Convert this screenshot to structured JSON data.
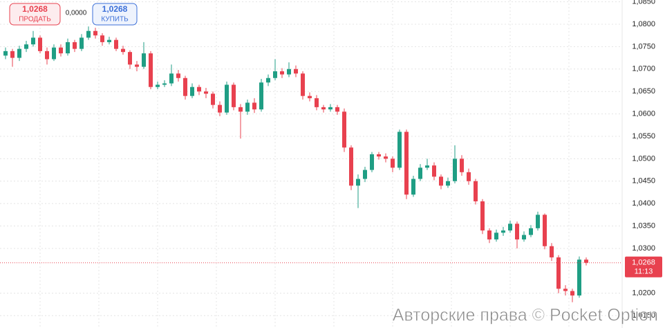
{
  "chart_data": {
    "type": "candlestick",
    "up_color": "#1f9e84",
    "down_color": "#e8414f",
    "grid": true,
    "ylim": [
      1.01225,
      1.0854
    ],
    "yticks": [
      {
        "value": 1.085,
        "label": "1,0850"
      },
      {
        "value": 1.08,
        "label": "1,0800"
      },
      {
        "value": 1.075,
        "label": "1,0750"
      },
      {
        "value": 1.07,
        "label": "1,0700"
      },
      {
        "value": 1.065,
        "label": "1,0650"
      },
      {
        "value": 1.06,
        "label": "1,0600"
      },
      {
        "value": 1.055,
        "label": "1,0550"
      },
      {
        "value": 1.05,
        "label": "1,0500"
      },
      {
        "value": 1.045,
        "label": "1,0450"
      },
      {
        "value": 1.04,
        "label": "1,0400"
      },
      {
        "value": 1.035,
        "label": "1,0350"
      },
      {
        "value": 1.03,
        "label": "1,0300"
      },
      {
        "value": 1.02,
        "label": "1,0200"
      },
      {
        "value": 1.015,
        "label": "1,0150"
      }
    ],
    "last_price": {
      "value": 1.0268,
      "label": "1,0268"
    },
    "timer": "11:13",
    "candles": [
      [
        1.073,
        1.0748,
        1.0722,
        1.074
      ],
      [
        1.074,
        1.0745,
        1.0705,
        1.0725
      ],
      [
        1.0725,
        1.0752,
        1.0718,
        1.0745
      ],
      [
        1.0745,
        1.0763,
        1.0738,
        1.0755
      ],
      [
        1.0755,
        1.0785,
        1.075,
        1.077
      ],
      [
        1.077,
        1.0775,
        1.0735,
        1.074
      ],
      [
        1.074,
        1.0748,
        1.071,
        1.0722
      ],
      [
        1.0722,
        1.0755,
        1.0718,
        1.0748
      ],
      [
        1.0748,
        1.0755,
        1.0728,
        1.0735
      ],
      [
        1.0735,
        1.0768,
        1.073,
        1.076
      ],
      [
        1.076,
        1.0765,
        1.0738,
        1.0745
      ],
      [
        1.0745,
        1.0778,
        1.074,
        1.077
      ],
      [
        1.077,
        1.0795,
        1.0765,
        1.0785
      ],
      [
        1.0785,
        1.0792,
        1.0768,
        1.0775
      ],
      [
        1.0775,
        1.078,
        1.0752,
        1.076
      ],
      [
        1.076,
        1.0772,
        1.0755,
        1.0765
      ],
      [
        1.0765,
        1.077,
        1.074,
        1.0745
      ],
      [
        1.0745,
        1.0752,
        1.0732,
        1.0738
      ],
      [
        1.0738,
        1.0742,
        1.07,
        1.071
      ],
      [
        1.071,
        1.0718,
        1.0695,
        1.0705
      ],
      [
        1.0705,
        1.076,
        1.07,
        1.0735
      ],
      [
        1.0735,
        1.074,
        1.0655,
        1.066
      ],
      [
        1.066,
        1.0672,
        1.0655,
        1.0665
      ],
      [
        1.0665,
        1.0675,
        1.066,
        1.0668
      ],
      [
        1.0668,
        1.071,
        1.0662,
        1.069
      ],
      [
        1.069,
        1.0698,
        1.0672,
        1.068
      ],
      [
        1.068,
        1.0685,
        1.0632,
        1.064
      ],
      [
        1.064,
        1.0668,
        1.0635,
        1.066
      ],
      [
        1.066,
        1.0665,
        1.0642,
        1.065
      ],
      [
        1.065,
        1.0658,
        1.0635,
        1.0645
      ],
      [
        1.0645,
        1.065,
        1.0612,
        1.062
      ],
      [
        1.062,
        1.0628,
        1.0595,
        1.0603
      ],
      [
        1.0603,
        1.0672,
        1.0598,
        1.0665
      ],
      [
        1.0665,
        1.067,
        1.0608,
        1.0615
      ],
      [
        1.0615,
        1.0622,
        1.0545,
        1.0605
      ],
      [
        1.0605,
        1.0632,
        1.0598,
        1.0625
      ],
      [
        1.0625,
        1.0635,
        1.0602,
        1.061
      ],
      [
        1.061,
        1.0678,
        1.0605,
        1.067
      ],
      [
        1.067,
        1.0688,
        1.0662,
        1.068
      ],
      [
        1.068,
        1.0722,
        1.0675,
        1.0695
      ],
      [
        1.0695,
        1.0702,
        1.068,
        1.0688
      ],
      [
        1.0688,
        1.0715,
        1.0682,
        1.07
      ],
      [
        1.07,
        1.0708,
        1.0682,
        1.069
      ],
      [
        1.069,
        1.0695,
        1.0632,
        1.064
      ],
      [
        1.064,
        1.0648,
        1.0628,
        1.0635
      ],
      [
        1.0635,
        1.0642,
        1.0608,
        1.0615
      ],
      [
        1.0615,
        1.062,
        1.0603,
        1.061
      ],
      [
        1.061,
        1.0622,
        1.0605,
        1.0615
      ],
      [
        1.0615,
        1.062,
        1.0598,
        1.0605
      ],
      [
        1.0605,
        1.0612,
        1.0515,
        1.0525
      ],
      [
        1.0525,
        1.053,
        1.043,
        1.044
      ],
      [
        1.044,
        1.0465,
        1.039,
        1.0455
      ],
      [
        1.0455,
        1.0482,
        1.0448,
        1.0475
      ],
      [
        1.0475,
        1.0515,
        1.047,
        1.051
      ],
      [
        1.051,
        1.0515,
        1.0498,
        1.0505
      ],
      [
        1.0505,
        1.0512,
        1.0492,
        1.05
      ],
      [
        1.05,
        1.0505,
        1.047,
        1.048
      ],
      [
        1.048,
        1.0565,
        1.0475,
        1.056
      ],
      [
        1.056,
        1.0565,
        1.041,
        1.042
      ],
      [
        1.042,
        1.0462,
        1.0415,
        1.0455
      ],
      [
        1.0455,
        1.0488,
        1.045,
        1.048
      ],
      [
        1.048,
        1.05,
        1.0475,
        1.0485
      ],
      [
        1.0485,
        1.0492,
        1.0452,
        1.046
      ],
      [
        1.046,
        1.0465,
        1.0432,
        1.044
      ],
      [
        1.044,
        1.0458,
        1.0435,
        1.045
      ],
      [
        1.045,
        1.053,
        1.0445,
        1.05
      ],
      [
        1.05,
        1.0508,
        1.0462,
        1.047
      ],
      [
        1.047,
        1.0478,
        1.0442,
        1.045
      ],
      [
        1.045,
        1.0455,
        1.0398,
        1.0405
      ],
      [
        1.0405,
        1.041,
        1.0332,
        1.034
      ],
      [
        1.034,
        1.0345,
        1.0312,
        1.032
      ],
      [
        1.032,
        1.0342,
        1.0315,
        1.0335
      ],
      [
        1.0335,
        1.0348,
        1.0328,
        1.034
      ],
      [
        1.034,
        1.0362,
        1.0335,
        1.0355
      ],
      [
        1.0355,
        1.036,
        1.03,
        1.032
      ],
      [
        1.032,
        1.0338,
        1.0315,
        1.033
      ],
      [
        1.033,
        1.0352,
        1.0325,
        1.0345
      ],
      [
        1.0345,
        1.0382,
        1.034,
        1.0375
      ],
      [
        1.0375,
        1.0378,
        1.0298,
        1.0305
      ],
      [
        1.0305,
        1.0312,
        1.0272,
        1.028
      ],
      [
        1.028,
        1.0285,
        1.02,
        1.021
      ],
      [
        1.021,
        1.0218,
        1.0195,
        1.0205
      ],
      [
        1.0205,
        1.021,
        1.018,
        1.0195
      ],
      [
        1.0195,
        1.0282,
        1.019,
        1.0275
      ],
      [
        1.0275,
        1.028,
        1.0262,
        1.0268
      ]
    ]
  },
  "trade_panel": {
    "sell": {
      "price": "1,0268",
      "label": "ПРОДАТЬ"
    },
    "spread": "0,0000",
    "buy": {
      "price": "1,0268",
      "label": "КУПИТЬ"
    }
  },
  "watermark": "Авторские права © Pocket Option"
}
